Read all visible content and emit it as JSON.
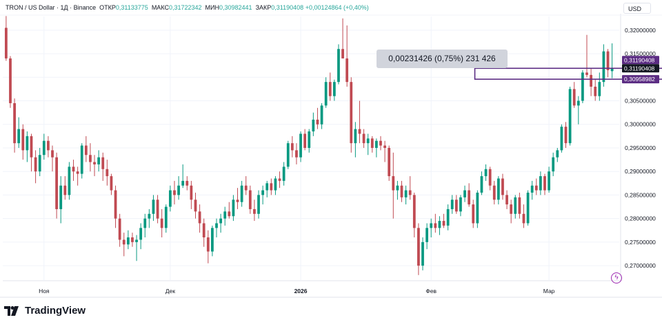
{
  "header": {
    "symbol": "TRON / US Dollar · 1Д · Binance",
    "open_label": "ОТКР",
    "open_value": "0,31133775",
    "high_label": "МАКС",
    "high_value": "0,31722342",
    "low_label": "МИН",
    "low_value": "0,30982441",
    "close_label": "ЗАКР",
    "close_value": "0,31190408",
    "change": "+0,00124864 (+0,40%)"
  },
  "currency_button": "USD",
  "measure_label": "0,00231426 (0,75%) 231 426",
  "brand": "TradingView",
  "colors": {
    "up": "#26a69a",
    "down": "#ef5350",
    "up_candle": "#089981",
    "down_candle": "#c04a52",
    "measure_border": "#5b2c83",
    "price_badge_purple": "#5b2c83",
    "price_badge_black": "#131722",
    "grid": "#f0f3fa",
    "axis_text": "#131722"
  },
  "chart_data": {
    "type": "candlestick",
    "y_ticks": [
      0.27,
      0.275,
      0.28,
      0.285,
      0.29,
      0.295,
      0.3,
      0.305,
      0.31,
      0.315,
      0.32
    ],
    "y_tick_labels": [
      "0,27000000",
      "0,27500000",
      "0,28000000",
      "0,28500000",
      "0,29000000",
      "0,29500000",
      "0,30000000",
      "0,30500000",
      "0,31000000",
      "0,31500000",
      "0,32000000"
    ],
    "ylim": [
      0.2668,
      0.3229
    ],
    "x_labels": [
      {
        "label": "Ноя",
        "index": 9
      },
      {
        "label": "Дек",
        "index": 39
      },
      {
        "label": "2026",
        "index": 70
      },
      {
        "label": "Фев",
        "index": 101
      },
      {
        "label": "Мар",
        "index": 129
      }
    ],
    "price_labels": [
      {
        "value": 0.31190408,
        "text": "0,31190408",
        "style": "purple"
      },
      {
        "value": 0.31190408,
        "text": "0,31190408",
        "style": "black"
      },
      {
        "value": 0.30958982,
        "text": "0,30958982",
        "style": "purple"
      }
    ],
    "measure_box": {
      "from_index": 112,
      "to_index": 159,
      "top": 0.31190408,
      "bottom": 0.30958982
    },
    "candles": [
      [
        0.3205,
        0.323,
        0.3135,
        0.314
      ],
      [
        0.314,
        0.3145,
        0.3035,
        0.3045
      ],
      [
        0.3045,
        0.3055,
        0.294,
        0.296
      ],
      [
        0.296,
        0.3015,
        0.295,
        0.299
      ],
      [
        0.299,
        0.3,
        0.2925,
        0.2945
      ],
      [
        0.2945,
        0.2985,
        0.292,
        0.2975
      ],
      [
        0.2975,
        0.298,
        0.29,
        0.293
      ],
      [
        0.293,
        0.2945,
        0.2875,
        0.29
      ],
      [
        0.29,
        0.295,
        0.289,
        0.2935
      ],
      [
        0.2935,
        0.298,
        0.2925,
        0.2965
      ],
      [
        0.2965,
        0.2975,
        0.293,
        0.2945
      ],
      [
        0.2945,
        0.2955,
        0.29,
        0.293
      ],
      [
        0.293,
        0.294,
        0.28,
        0.282
      ],
      [
        0.282,
        0.289,
        0.279,
        0.287
      ],
      [
        0.287,
        0.289,
        0.284,
        0.285
      ],
      [
        0.285,
        0.292,
        0.284,
        0.291
      ],
      [
        0.291,
        0.2925,
        0.288,
        0.29
      ],
      [
        0.29,
        0.291,
        0.287,
        0.2895
      ],
      [
        0.2895,
        0.296,
        0.2885,
        0.2955
      ],
      [
        0.2955,
        0.2975,
        0.292,
        0.2935
      ],
      [
        0.2935,
        0.296,
        0.29,
        0.292
      ],
      [
        0.292,
        0.2935,
        0.289,
        0.2915
      ],
      [
        0.2915,
        0.2945,
        0.29,
        0.293
      ],
      [
        0.293,
        0.294,
        0.288,
        0.2905
      ],
      [
        0.2905,
        0.2925,
        0.287,
        0.289
      ],
      [
        0.289,
        0.2895,
        0.285,
        0.286
      ],
      [
        0.286,
        0.287,
        0.278,
        0.28
      ],
      [
        0.28,
        0.281,
        0.274,
        0.2755
      ],
      [
        0.2755,
        0.277,
        0.272,
        0.2745
      ],
      [
        0.2745,
        0.2775,
        0.2735,
        0.276
      ],
      [
        0.276,
        0.277,
        0.274,
        0.275
      ],
      [
        0.275,
        0.2765,
        0.271,
        0.2755
      ],
      [
        0.2755,
        0.279,
        0.2735,
        0.278
      ],
      [
        0.278,
        0.281,
        0.276,
        0.28
      ],
      [
        0.28,
        0.282,
        0.278,
        0.281
      ],
      [
        0.281,
        0.285,
        0.2795,
        0.284
      ],
      [
        0.284,
        0.285,
        0.279,
        0.28
      ],
      [
        0.28,
        0.282,
        0.276,
        0.278
      ],
      [
        0.278,
        0.283,
        0.277,
        0.2825
      ],
      [
        0.2825,
        0.287,
        0.2815,
        0.286
      ],
      [
        0.286,
        0.288,
        0.283,
        0.285
      ],
      [
        0.285,
        0.289,
        0.284,
        0.287
      ],
      [
        0.287,
        0.2915,
        0.2865,
        0.288
      ],
      [
        0.288,
        0.289,
        0.286,
        0.287
      ],
      [
        0.287,
        0.288,
        0.282,
        0.284
      ],
      [
        0.284,
        0.2855,
        0.28,
        0.2815
      ],
      [
        0.2815,
        0.283,
        0.277,
        0.279
      ],
      [
        0.279,
        0.28,
        0.274,
        0.276
      ],
      [
        0.276,
        0.2775,
        0.2705,
        0.273
      ],
      [
        0.273,
        0.2785,
        0.272,
        0.278
      ],
      [
        0.278,
        0.28,
        0.276,
        0.279
      ],
      [
        0.279,
        0.281,
        0.277,
        0.28
      ],
      [
        0.28,
        0.2825,
        0.2785,
        0.2815
      ],
      [
        0.2815,
        0.2835,
        0.28,
        0.2805
      ],
      [
        0.2805,
        0.285,
        0.2795,
        0.284
      ],
      [
        0.284,
        0.2865,
        0.282,
        0.2835
      ],
      [
        0.2835,
        0.288,
        0.2825,
        0.287
      ],
      [
        0.287,
        0.289,
        0.285,
        0.286
      ],
      [
        0.286,
        0.287,
        0.281,
        0.282
      ],
      [
        0.282,
        0.284,
        0.2795,
        0.281
      ],
      [
        0.281,
        0.286,
        0.28,
        0.285
      ],
      [
        0.285,
        0.287,
        0.283,
        0.286
      ],
      [
        0.286,
        0.288,
        0.2845,
        0.2875
      ],
      [
        0.2875,
        0.2885,
        0.285,
        0.286
      ],
      [
        0.286,
        0.289,
        0.285,
        0.2885
      ],
      [
        0.2885,
        0.29,
        0.2865,
        0.288
      ],
      [
        0.288,
        0.292,
        0.287,
        0.291
      ],
      [
        0.291,
        0.2965,
        0.2905,
        0.296
      ],
      [
        0.296,
        0.2975,
        0.293,
        0.2945
      ],
      [
        0.2945,
        0.296,
        0.2915,
        0.293
      ],
      [
        0.293,
        0.2985,
        0.292,
        0.298
      ],
      [
        0.298,
        0.299,
        0.2945,
        0.295
      ],
      [
        0.295,
        0.299,
        0.294,
        0.2985
      ],
      [
        0.2985,
        0.3025,
        0.2975,
        0.301
      ],
      [
        0.301,
        0.3035,
        0.299,
        0.3
      ],
      [
        0.3,
        0.3045,
        0.299,
        0.304
      ],
      [
        0.304,
        0.31,
        0.3035,
        0.309
      ],
      [
        0.309,
        0.311,
        0.305,
        0.306
      ],
      [
        0.306,
        0.3095,
        0.305,
        0.309
      ],
      [
        0.309,
        0.317,
        0.3085,
        0.316
      ],
      [
        0.316,
        0.3225,
        0.314,
        0.314
      ],
      [
        0.314,
        0.321,
        0.308,
        0.309
      ],
      [
        0.309,
        0.31,
        0.294,
        0.296
      ],
      [
        0.296,
        0.3005,
        0.293,
        0.299
      ],
      [
        0.299,
        0.305,
        0.296,
        0.298
      ],
      [
        0.298,
        0.299,
        0.295,
        0.296
      ],
      [
        0.296,
        0.298,
        0.2935,
        0.297
      ],
      [
        0.297,
        0.2975,
        0.294,
        0.295
      ],
      [
        0.295,
        0.297,
        0.293,
        0.2965
      ],
      [
        0.2965,
        0.2975,
        0.2945,
        0.2955
      ],
      [
        0.2955,
        0.2965,
        0.292,
        0.295
      ],
      [
        0.295,
        0.2955,
        0.288,
        0.289
      ],
      [
        0.289,
        0.294,
        0.28,
        0.286
      ],
      [
        0.286,
        0.288,
        0.284,
        0.287
      ],
      [
        0.287,
        0.288,
        0.2835,
        0.2845
      ],
      [
        0.2845,
        0.287,
        0.283,
        0.286
      ],
      [
        0.286,
        0.289,
        0.284,
        0.285
      ],
      [
        0.285,
        0.2855,
        0.276,
        0.278
      ],
      [
        0.278,
        0.279,
        0.268,
        0.27
      ],
      [
        0.27,
        0.276,
        0.269,
        0.275
      ],
      [
        0.275,
        0.279,
        0.2735,
        0.278
      ],
      [
        0.278,
        0.28,
        0.276,
        0.279
      ],
      [
        0.279,
        0.281,
        0.277,
        0.278
      ],
      [
        0.278,
        0.2805,
        0.2765,
        0.2795
      ],
      [
        0.2795,
        0.281,
        0.278,
        0.2785
      ],
      [
        0.2785,
        0.283,
        0.2775,
        0.282
      ],
      [
        0.282,
        0.285,
        0.281,
        0.284
      ],
      [
        0.284,
        0.285,
        0.281,
        0.2815
      ],
      [
        0.2815,
        0.285,
        0.2805,
        0.2845
      ],
      [
        0.2845,
        0.287,
        0.2835,
        0.286
      ],
      [
        0.286,
        0.2875,
        0.2825,
        0.283
      ],
      [
        0.283,
        0.284,
        0.278,
        0.279
      ],
      [
        0.279,
        0.286,
        0.278,
        0.2855
      ],
      [
        0.2855,
        0.29,
        0.285,
        0.289
      ],
      [
        0.289,
        0.2915,
        0.288,
        0.2905
      ],
      [
        0.2905,
        0.291,
        0.286,
        0.287
      ],
      [
        0.287,
        0.288,
        0.283,
        0.284
      ],
      [
        0.284,
        0.289,
        0.283,
        0.2885
      ],
      [
        0.2885,
        0.2895,
        0.284,
        0.285
      ],
      [
        0.285,
        0.286,
        0.282,
        0.283
      ],
      [
        0.283,
        0.284,
        0.279,
        0.281
      ],
      [
        0.281,
        0.285,
        0.28,
        0.2845
      ],
      [
        0.2845,
        0.2855,
        0.28,
        0.281
      ],
      [
        0.281,
        0.283,
        0.278,
        0.279
      ],
      [
        0.279,
        0.286,
        0.2785,
        0.2855
      ],
      [
        0.2855,
        0.288,
        0.284,
        0.287
      ],
      [
        0.287,
        0.2885,
        0.285,
        0.286
      ],
      [
        0.286,
        0.29,
        0.285,
        0.289
      ],
      [
        0.289,
        0.2895,
        0.285,
        0.286
      ],
      [
        0.286,
        0.291,
        0.2855,
        0.29
      ],
      [
        0.29,
        0.294,
        0.289,
        0.293
      ],
      [
        0.293,
        0.295,
        0.292,
        0.2945
      ],
      [
        0.2945,
        0.3,
        0.294,
        0.2995
      ],
      [
        0.2995,
        0.3005,
        0.295,
        0.296
      ],
      [
        0.296,
        0.308,
        0.2955,
        0.3075
      ],
      [
        0.3075,
        0.309,
        0.3035,
        0.304
      ],
      [
        0.304,
        0.306,
        0.3,
        0.305
      ],
      [
        0.305,
        0.3115,
        0.3045,
        0.311
      ],
      [
        0.311,
        0.319,
        0.31,
        0.3105
      ],
      [
        0.3105,
        0.312,
        0.306,
        0.308
      ],
      [
        0.308,
        0.3095,
        0.305,
        0.306
      ],
      [
        0.306,
        0.311,
        0.305,
        0.309
      ],
      [
        0.309,
        0.317,
        0.308,
        0.3155
      ],
      [
        0.3155,
        0.316,
        0.31,
        0.3115
      ],
      [
        0.3113,
        0.3172,
        0.3098,
        0.3119
      ]
    ]
  }
}
